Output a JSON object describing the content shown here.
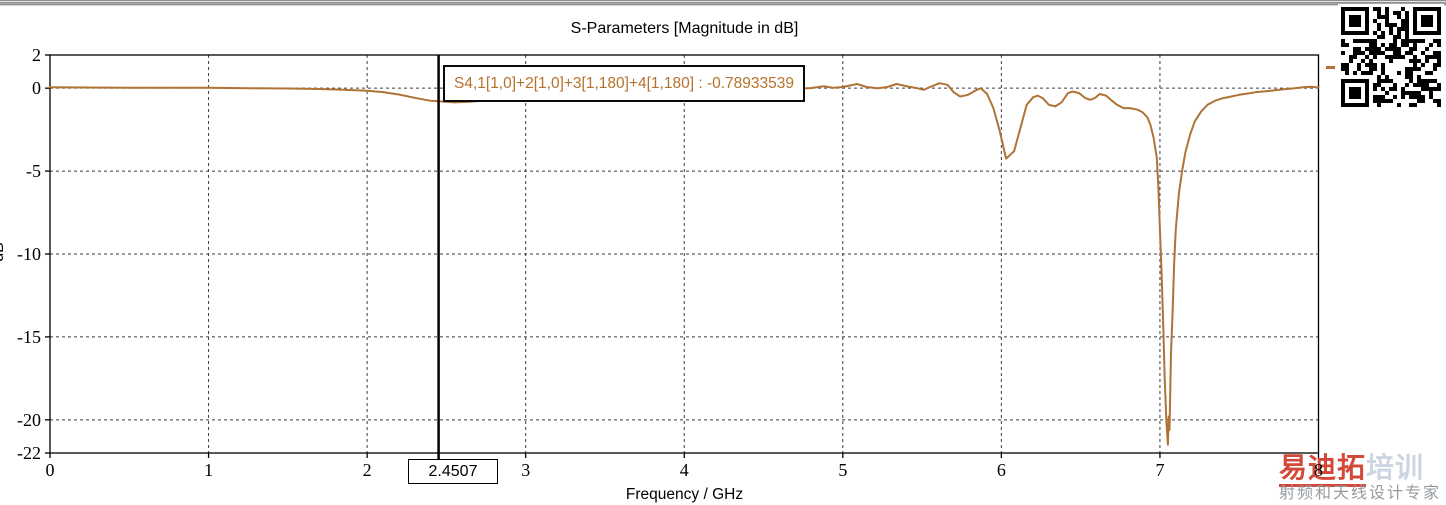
{
  "title_bar": {},
  "chart_data": {
    "type": "line",
    "title": "S-Parameters [Magnitude in dB]",
    "xlabel": "Frequency / GHz",
    "ylabel": "dB",
    "xlim": [
      0,
      8
    ],
    "ylim": [
      -22,
      2
    ],
    "x_ticks": [
      0,
      1,
      2,
      3,
      4,
      5,
      6,
      7,
      8
    ],
    "y_ticks": [
      2,
      0,
      -5,
      -10,
      -15,
      -20,
      -22
    ],
    "grid": "dashed",
    "grid_color": "#3c3c3c",
    "legend_position": "top-right-outside",
    "series": [
      {
        "name": "S4,1[1,0]+2[1,0]+3[1,180]+4[1,180]",
        "color": "#b07336",
        "points": [
          [
            0,
            0.05
          ],
          [
            0.25,
            0.04
          ],
          [
            0.5,
            0.03
          ],
          [
            0.75,
            0.03
          ],
          [
            1,
            0.02
          ],
          [
            1.25,
            0
          ],
          [
            1.5,
            -0.02
          ],
          [
            1.7,
            -0.05
          ],
          [
            1.85,
            -0.1
          ],
          [
            2,
            -0.16
          ],
          [
            2.1,
            -0.24
          ],
          [
            2.2,
            -0.38
          ],
          [
            2.3,
            -0.58
          ],
          [
            2.4,
            -0.76
          ],
          [
            2.4507,
            -0.789
          ],
          [
            2.55,
            -0.86
          ],
          [
            2.65,
            -0.82
          ],
          [
            2.8,
            -0.7
          ],
          [
            3,
            -0.52
          ],
          [
            3.3,
            -0.33
          ],
          [
            3.6,
            -0.18
          ],
          [
            4,
            -0.08
          ],
          [
            4.4,
            -0.03
          ],
          [
            4.7,
            -0.01
          ],
          [
            4.79,
            0
          ],
          [
            4.88,
            0.12
          ],
          [
            4.94,
            0.02
          ],
          [
            5,
            0.07
          ],
          [
            5.09,
            0.25
          ],
          [
            5.15,
            0.07
          ],
          [
            5.22,
            0
          ],
          [
            5.28,
            0.07
          ],
          [
            5.34,
            0.25
          ],
          [
            5.41,
            0.1
          ],
          [
            5.47,
            0
          ],
          [
            5.51,
            -0.1
          ],
          [
            5.55,
            0.07
          ],
          [
            5.61,
            0.3
          ],
          [
            5.66,
            0.2
          ],
          [
            5.7,
            -0.25
          ],
          [
            5.74,
            -0.5
          ],
          [
            5.79,
            -0.4
          ],
          [
            5.84,
            -0.12
          ],
          [
            5.87,
            0
          ],
          [
            5.91,
            -0.35
          ],
          [
            5.95,
            -1.2
          ],
          [
            5.99,
            -2.6
          ],
          [
            6.03,
            -4.25
          ],
          [
            6.08,
            -3.8
          ],
          [
            6.12,
            -2.4
          ],
          [
            6.16,
            -1
          ],
          [
            6.2,
            -0.55
          ],
          [
            6.23,
            -0.45
          ],
          [
            6.26,
            -0.6
          ],
          [
            6.3,
            -1
          ],
          [
            6.34,
            -1.1
          ],
          [
            6.38,
            -0.85
          ],
          [
            6.42,
            -0.3
          ],
          [
            6.45,
            -0.2
          ],
          [
            6.49,
            -0.3
          ],
          [
            6.53,
            -0.6
          ],
          [
            6.56,
            -0.7
          ],
          [
            6.59,
            -0.6
          ],
          [
            6.62,
            -0.35
          ],
          [
            6.66,
            -0.45
          ],
          [
            6.69,
            -0.7
          ],
          [
            6.73,
            -1
          ],
          [
            6.77,
            -1.2
          ],
          [
            6.81,
            -1.2
          ],
          [
            6.86,
            -1.3
          ],
          [
            6.89,
            -1.45
          ],
          [
            6.92,
            -1.75
          ],
          [
            6.94,
            -2.2
          ],
          [
            6.96,
            -3
          ],
          [
            6.98,
            -4.2
          ],
          [
            6.99,
            -6
          ],
          [
            7,
            -8.5
          ],
          [
            7.01,
            -11
          ],
          [
            7.02,
            -14
          ],
          [
            7.03,
            -17.5
          ],
          [
            7.04,
            -20
          ],
          [
            7.05,
            -21.5
          ],
          [
            7.055,
            -19.8
          ],
          [
            7.06,
            -20.6
          ],
          [
            7.07,
            -16
          ],
          [
            7.08,
            -13.5
          ],
          [
            7.09,
            -10.5
          ],
          [
            7.1,
            -8.5
          ],
          [
            7.12,
            -6.3
          ],
          [
            7.14,
            -5
          ],
          [
            7.16,
            -3.9
          ],
          [
            7.19,
            -2.8
          ],
          [
            7.22,
            -2
          ],
          [
            7.26,
            -1.4
          ],
          [
            7.3,
            -1
          ],
          [
            7.35,
            -0.75
          ],
          [
            7.4,
            -0.6
          ],
          [
            7.45,
            -0.5
          ],
          [
            7.5,
            -0.4
          ],
          [
            7.55,
            -0.33
          ],
          [
            7.6,
            -0.25
          ],
          [
            7.65,
            -0.2
          ],
          [
            7.7,
            -0.15
          ],
          [
            7.75,
            -0.1
          ],
          [
            7.8,
            -0.05
          ],
          [
            7.85,
            0
          ],
          [
            7.9,
            0.06
          ],
          [
            7.95,
            0.08
          ],
          [
            8,
            0.04
          ]
        ]
      }
    ],
    "marker": {
      "x": 2.4507,
      "label": "2.4507",
      "value": -0.78933539,
      "tooltip_text": "S4,1[1,0]+2[1,0]+3[1,180]+4[1,180] : -0.78933539"
    }
  },
  "overlays": {
    "qr_code": "qr-code-image",
    "watermark": {
      "brand_red": "易迪拓",
      "brand_light": "培训",
      "tagline": "射频和天线设计专家",
      "red": "#cf3a2a",
      "light": "#c9d2e0",
      "gray": "#8f9499"
    }
  }
}
